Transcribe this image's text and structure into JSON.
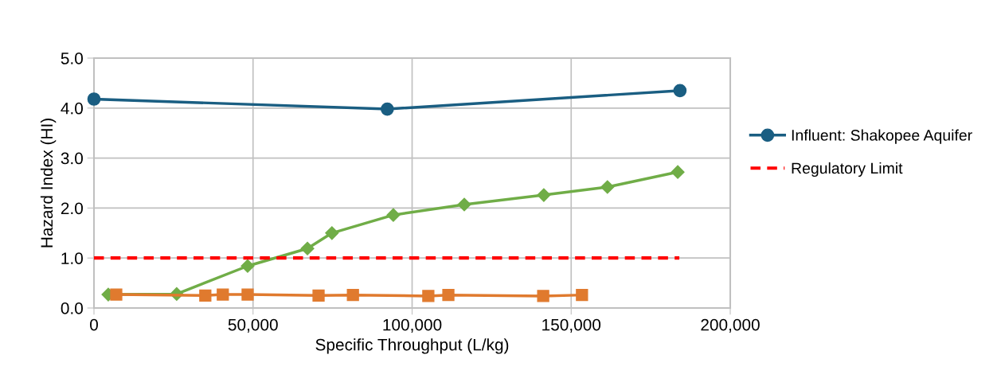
{
  "chart_data": {
    "type": "line",
    "xlabel": "Specific Throughput (L/kg)",
    "ylabel": "Hazard Index (HI)",
    "xlim": [
      0,
      200000
    ],
    "xticks": [
      {
        "value": 0,
        "label": "0"
      },
      {
        "value": 50000,
        "label": "50,000"
      },
      {
        "value": 100000,
        "label": "100,000"
      },
      {
        "value": 150000,
        "label": "150,000"
      },
      {
        "value": 200000,
        "label": "200,000"
      }
    ],
    "ylim": [
      0,
      5
    ],
    "yticks": [
      {
        "value": 0,
        "label": "0.0"
      },
      {
        "value": 1,
        "label": "1.0"
      },
      {
        "value": 2,
        "label": "2.0"
      },
      {
        "value": 3,
        "label": "3.0"
      },
      {
        "value": 4,
        "label": "4.0"
      },
      {
        "value": 5,
        "label": "5.0"
      }
    ],
    "grid": true,
    "legend": "right",
    "series": [
      {
        "name": "Influent: Shakopee Aquifer",
        "color": "#1a5e82",
        "marker": "circle",
        "x": [
          0,
          92200,
          184200
        ],
        "values": [
          4.18,
          3.98,
          4.35
        ]
      },
      {
        "color": "#70ad47",
        "marker": "diamond",
        "x": [
          4500,
          26000,
          48300,
          67100,
          74800,
          94100,
          116400,
          141400,
          161400,
          183500
        ],
        "values": [
          0.27,
          0.28,
          0.84,
          1.19,
          1.5,
          1.86,
          2.07,
          2.26,
          2.42,
          2.72
        ]
      },
      {
        "color": "#e07a2e",
        "marker": "square",
        "x": [
          7000,
          35000,
          40500,
          48300,
          70600,
          81400,
          105100,
          111400,
          141200,
          153400
        ],
        "values": [
          0.27,
          0.25,
          0.27,
          0.27,
          0.25,
          0.26,
          0.24,
          0.26,
          0.24,
          0.26
        ]
      },
      {
        "name": "Regulatory Limit",
        "color": "#ff0000",
        "marker": "none",
        "line_style": "dashed",
        "x": [
          0,
          184000
        ],
        "values": [
          1.0,
          1.0
        ]
      }
    ]
  }
}
